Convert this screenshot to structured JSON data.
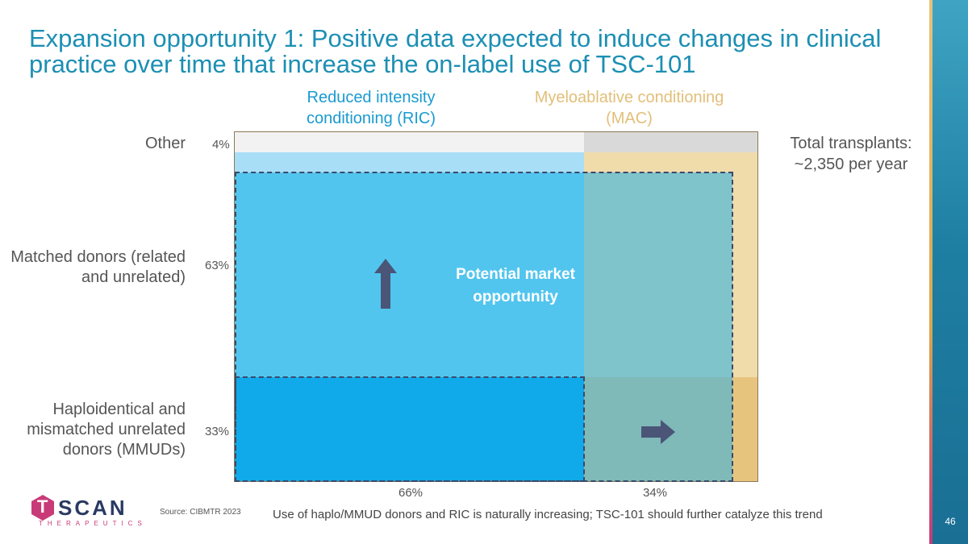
{
  "slide": {
    "title": "Expansion opportunity 1: Positive data expected to induce changes in clinical practice over time that increase the on-label use of TSC-101",
    "page_number": "46"
  },
  "columns": {
    "ric": {
      "label": "Reduced intensity conditioning (RIC)",
      "share": "66%"
    },
    "mac": {
      "label": "Myeloablative conditioning (MAC)",
      "share": "34%"
    }
  },
  "rows": {
    "other": {
      "label": "Other",
      "share": "4%"
    },
    "matched": {
      "label": "Matched donors (related and unrelated)",
      "share": "63%"
    },
    "haplo": {
      "label": "Haploidentical and mismatched unrelated donors (MMUDs)",
      "share": "33%"
    }
  },
  "total": {
    "line1": "Total transplants:",
    "line2": "~2,350 per year"
  },
  "market_label": "Potential market opportunity",
  "source": "Source: CIBMTR 2023",
  "footnote": "Use of haplo/MMUD donors and RIC is naturally increasing; TSC-101 should further catalyze this trend",
  "logo": {
    "mark": "T",
    "name": "SCAN",
    "sub": "THERAPEUTICS"
  },
  "colors": {
    "title": "#1c8fb3",
    "ric_other": "#f2f2f2",
    "mac_other": "#d9d9d9",
    "ric_matched": "#a8dff6",
    "mac_matched": "#f0dbab",
    "ric_haplo": "#10aaea",
    "mac_haplo": "#e7c47d",
    "market_overlay": "#52c5ee",
    "mac_overlay": "#7fc3cb",
    "arrow": "#4a5578",
    "logo_pink": "#c93b78"
  },
  "icons": [
    "up-arrow-icon",
    "right-arrow-icon"
  ]
}
